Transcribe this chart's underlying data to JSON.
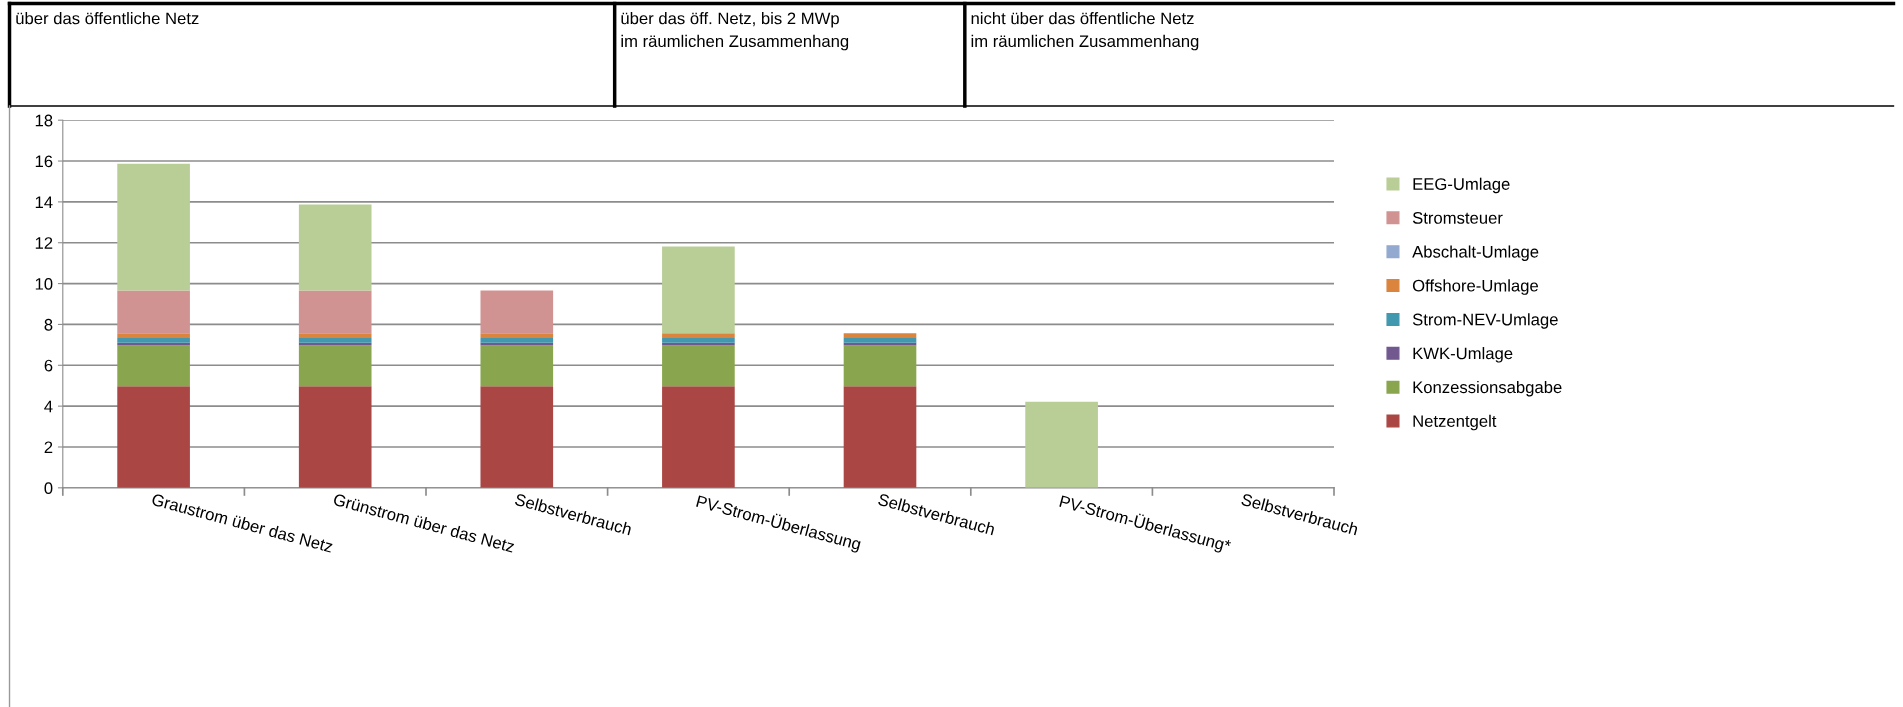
{
  "chart_data": {
    "type": "bar",
    "stacked": true,
    "categories": [
      "Graustrom über das Netz",
      "Grünstrom über das Netz",
      "Selbstverbrauch",
      "PV-Strom-Überlassung",
      "Selbstverbrauch",
      "PV-Strom-Überlassung*",
      "Selbstverbrauch"
    ],
    "series": [
      {
        "name": "Netzentgelt",
        "color": "#aa4643",
        "values": [
          4.97,
          4.97,
          4.97,
          4.97,
          4.97,
          null,
          null
        ]
      },
      {
        "name": "Konzessionsabgabe",
        "color": "#89a54e",
        "values": [
          2.0,
          2.0,
          2.0,
          2.0,
          2.0,
          null,
          null
        ]
      },
      {
        "name": "KWK-Umlage",
        "color": "#71588f",
        "values": [
          0.13,
          0.13,
          0.13,
          0.13,
          0.13,
          null,
          null
        ]
      },
      {
        "name": "Strom-NEV-Umlage",
        "color": "#4198af",
        "values": [
          0.23,
          0.23,
          0.23,
          0.23,
          0.23,
          null,
          null
        ]
      },
      {
        "name": "Offshore-Umlage",
        "color": "#db843d",
        "values": [
          0.24,
          0.24,
          0.24,
          0.24,
          0.24,
          null,
          null
        ]
      },
      {
        "name": "Abschalt-Umlage",
        "color": "#93a9cf",
        "values": [
          null,
          null,
          null,
          null,
          null,
          null,
          null
        ]
      },
      {
        "name": "Stromsteuer",
        "color": "#d19392",
        "values": [
          2.09,
          2.09,
          2.09,
          null,
          null,
          null,
          null
        ]
      },
      {
        "name": "EEG-Umlage",
        "color": "#b9cd96",
        "values": [
          6.21,
          4.21,
          null,
          4.25,
          null,
          4.22,
          null
        ]
      }
    ],
    "ylim": [
      0,
      18
    ],
    "yticks": [
      0,
      2,
      4,
      6,
      8,
      10,
      12,
      14,
      16,
      18
    ],
    "grid": "y",
    "legend": "right",
    "annotations": [
      "über das öffentliche Netz",
      "über das öff. Netz, bis 2 MWp\nim räumlichen Zusammenhang",
      "nicht über das öffentliche Netz\nim räumlichen Zusammenhang"
    ]
  }
}
